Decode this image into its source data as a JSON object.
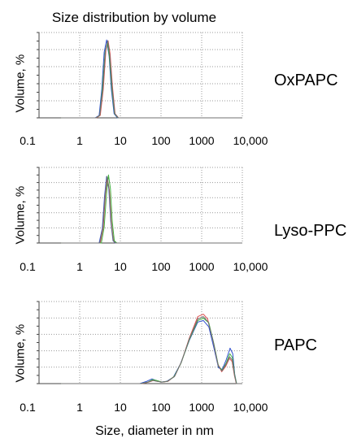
{
  "chart_data": {
    "type": "line",
    "title": "Size distribution by volume",
    "xlabel": "Size, diameter in nm",
    "x_scale": "log",
    "xlim": [
      0.1,
      10000
    ],
    "xticks": [
      "0.1",
      "1",
      "10",
      "100",
      "1000",
      "10,000"
    ],
    "grid": true,
    "series_colors": [
      "#3050d0",
      "#e05050",
      "#40b040",
      "#707070"
    ],
    "panels": [
      {
        "name": "OxPAPC",
        "ylabel": "Volume, %",
        "series": [
          {
            "color": "#3050d0",
            "points": [
              [
                0.35,
                0
              ],
              [
                2.4,
                0
              ],
              [
                3.0,
                3
              ],
              [
                3.5,
                35
              ],
              [
                4.0,
                80
              ],
              [
                4.6,
                95
              ],
              [
                5.3,
                75
              ],
              [
                6.0,
                35
              ],
              [
                7.0,
                5
              ],
              [
                8.5,
                0
              ],
              [
                10000,
                0
              ]
            ]
          },
          {
            "color": "#e05050",
            "points": [
              [
                0.35,
                0
              ],
              [
                2.6,
                0
              ],
              [
                3.2,
                3
              ],
              [
                3.8,
                35
              ],
              [
                4.4,
                82
              ],
              [
                5.0,
                94
              ],
              [
                5.6,
                78
              ],
              [
                6.4,
                38
              ],
              [
                7.4,
                5
              ],
              [
                9,
                0
              ],
              [
                10000,
                0
              ]
            ]
          },
          {
            "color": "#40b040",
            "points": [
              [
                0.35,
                0
              ],
              [
                2.5,
                0
              ],
              [
                3.1,
                3
              ],
              [
                3.6,
                34
              ],
              [
                4.2,
                80
              ],
              [
                4.8,
                92
              ],
              [
                5.4,
                74
              ],
              [
                6.2,
                35
              ],
              [
                7.2,
                5
              ],
              [
                8.8,
                0
              ],
              [
                10000,
                0
              ]
            ]
          },
          {
            "color": "#707070",
            "points": [
              [
                0.35,
                0
              ],
              [
                2.5,
                0
              ],
              [
                3.1,
                3
              ],
              [
                3.7,
                34
              ],
              [
                4.3,
                82
              ],
              [
                4.9,
                94
              ],
              [
                5.5,
                76
              ],
              [
                6.3,
                36
              ],
              [
                7.3,
                5
              ],
              [
                8.9,
                0
              ],
              [
                10000,
                0
              ]
            ]
          }
        ]
      },
      {
        "name": "Lyso-PPC",
        "ylabel": "Volume, %",
        "series": [
          {
            "color": "#3050d0",
            "points": [
              [
                0.35,
                0
              ],
              [
                3.0,
                0
              ],
              [
                3.6,
                20
              ],
              [
                4.1,
                65
              ],
              [
                4.6,
                92
              ],
              [
                5.2,
                75
              ],
              [
                5.8,
                30
              ],
              [
                6.6,
                3
              ],
              [
                7.5,
                0
              ],
              [
                10000,
                0
              ]
            ]
          },
          {
            "color": "#e05050",
            "points": [
              [
                0.35,
                0
              ],
              [
                3.2,
                0
              ],
              [
                3.8,
                22
              ],
              [
                4.3,
                68
              ],
              [
                4.8,
                90
              ],
              [
                5.4,
                72
              ],
              [
                6.0,
                28
              ],
              [
                6.8,
                3
              ],
              [
                7.8,
                0
              ],
              [
                10000,
                0
              ]
            ]
          },
          {
            "color": "#40b040",
            "points": [
              [
                0.35,
                0
              ],
              [
                3.4,
                0
              ],
              [
                4.0,
                22
              ],
              [
                4.6,
                70
              ],
              [
                5.1,
                94
              ],
              [
                5.7,
                75
              ],
              [
                6.3,
                30
              ],
              [
                7.1,
                3
              ],
              [
                8.2,
                0
              ],
              [
                10000,
                0
              ]
            ]
          },
          {
            "color": "#707070",
            "points": [
              [
                0.35,
                0
              ],
              [
                3.1,
                0
              ],
              [
                3.7,
                21
              ],
              [
                4.2,
                66
              ],
              [
                4.7,
                92
              ],
              [
                5.3,
                74
              ],
              [
                5.9,
                29
              ],
              [
                6.7,
                3
              ],
              [
                7.7,
                0
              ],
              [
                10000,
                0
              ]
            ]
          }
        ]
      },
      {
        "name": "PAPC",
        "ylabel": "Volume, %",
        "series": [
          {
            "color": "#3050d0",
            "points": [
              [
                0.35,
                0
              ],
              [
                30,
                0
              ],
              [
                45,
                3
              ],
              [
                60,
                6
              ],
              [
                75,
                4
              ],
              [
                100,
                2
              ],
              [
                140,
                3
              ],
              [
                200,
                8
              ],
              [
                300,
                25
              ],
              [
                500,
                55
              ],
              [
                800,
                78
              ],
              [
                1100,
                80
              ],
              [
                1500,
                72
              ],
              [
                2000,
                45
              ],
              [
                2600,
                20
              ],
              [
                3200,
                18
              ],
              [
                4000,
                30
              ],
              [
                5000,
                45
              ],
              [
                5800,
                38
              ],
              [
                6500,
                12
              ],
              [
                7200,
                0
              ],
              [
                10000,
                0
              ]
            ]
          },
          {
            "color": "#e05050",
            "points": [
              [
                0.35,
                0
              ],
              [
                35,
                0
              ],
              [
                50,
                2
              ],
              [
                65,
                4
              ],
              [
                80,
                3
              ],
              [
                110,
                2
              ],
              [
                150,
                3
              ],
              [
                220,
                10
              ],
              [
                320,
                28
              ],
              [
                500,
                58
              ],
              [
                800,
                85
              ],
              [
                1100,
                88
              ],
              [
                1400,
                82
              ],
              [
                1900,
                55
              ],
              [
                2500,
                25
              ],
              [
                3100,
                15
              ],
              [
                3900,
                22
              ],
              [
                4800,
                32
              ],
              [
                5600,
                28
              ],
              [
                6400,
                10
              ],
              [
                7100,
                0
              ],
              [
                10000,
                0
              ]
            ]
          },
          {
            "color": "#40b040",
            "points": [
              [
                0.35,
                0
              ],
              [
                32,
                0
              ],
              [
                48,
                2
              ],
              [
                62,
                5
              ],
              [
                78,
                4
              ],
              [
                105,
                2
              ],
              [
                145,
                3
              ],
              [
                210,
                9
              ],
              [
                310,
                26
              ],
              [
                500,
                56
              ],
              [
                800,
                80
              ],
              [
                1100,
                83
              ],
              [
                1500,
                77
              ],
              [
                2000,
                50
              ],
              [
                2600,
                22
              ],
              [
                3200,
                17
              ],
              [
                4000,
                26
              ],
              [
                4900,
                38
              ],
              [
                5700,
                33
              ],
              [
                6500,
                11
              ],
              [
                7200,
                0
              ],
              [
                10000,
                0
              ]
            ]
          },
          {
            "color": "#707070",
            "points": [
              [
                0.35,
                0
              ],
              [
                33,
                0
              ],
              [
                48,
                2
              ],
              [
                63,
                4
              ],
              [
                78,
                3
              ],
              [
                105,
                2
              ],
              [
                145,
                3
              ],
              [
                215,
                9
              ],
              [
                315,
                27
              ],
              [
                500,
                57
              ],
              [
                800,
                82
              ],
              [
                1100,
                85
              ],
              [
                1450,
                78
              ],
              [
                1950,
                52
              ],
              [
                2550,
                23
              ],
              [
                3150,
                16
              ],
              [
                3950,
                24
              ],
              [
                4850,
                34
              ],
              [
                5650,
                30
              ],
              [
                6450,
                10
              ],
              [
                7150,
                0
              ],
              [
                10000,
                0
              ]
            ]
          }
        ]
      }
    ]
  }
}
